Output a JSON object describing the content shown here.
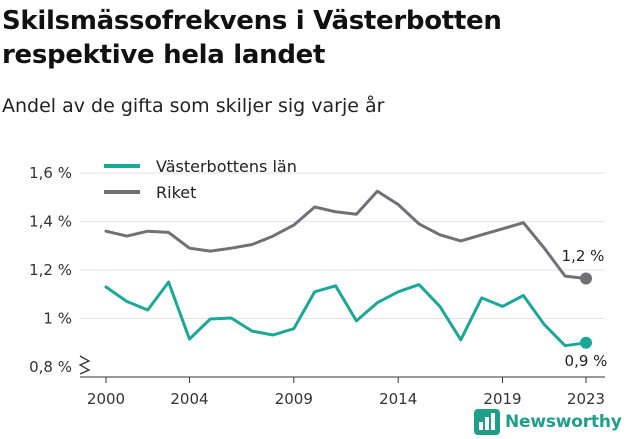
{
  "header": {
    "title": "Skilsmässofrekvens i Västerbotten respektive hela landet",
    "subtitle": "Andel av de gifta som skiljer sig varje år"
  },
  "brand": {
    "name": "Newsworthy",
    "icon": "bar-chart-logo-icon",
    "color": "#1f9e8a"
  },
  "chart_data": {
    "type": "line",
    "title": "Skilsmässofrekvens i Västerbotten respektive hela landet",
    "subtitle": "Andel av de gifta som skiljer sig varje år",
    "xlabel": "",
    "ylabel": "",
    "x": [
      2000,
      2001,
      2002,
      2003,
      2004,
      2005,
      2006,
      2007,
      2008,
      2009,
      2010,
      2011,
      2012,
      2013,
      2014,
      2015,
      2016,
      2017,
      2018,
      2019,
      2020,
      2021,
      2022,
      2023
    ],
    "xticks": [
      "2000",
      "2004",
      "2009",
      "2014",
      "2019",
      "2023"
    ],
    "yticks": [
      "0,8 %",
      "1 %",
      "1,2 %",
      "1,4 %",
      "1,6 %"
    ],
    "ylim": [
      0.8,
      1.6
    ],
    "y_axis_break": true,
    "grid": true,
    "legend_position": "top-left",
    "series": [
      {
        "name": "Västerbottens län",
        "color": "#1ba896",
        "values": [
          1.13,
          1.07,
          1.035,
          1.15,
          0.915,
          0.998,
          1.002,
          0.948,
          0.932,
          0.958,
          1.11,
          1.135,
          0.99,
          1.065,
          1.11,
          1.14,
          1.05,
          0.912,
          1.085,
          1.05,
          1.095,
          0.975,
          0.888,
          0.9
        ],
        "end_label": "0,9 %"
      },
      {
        "name": "Riket",
        "color": "#707075",
        "values": [
          1.36,
          1.34,
          1.36,
          1.355,
          1.29,
          1.278,
          1.29,
          1.305,
          1.34,
          1.385,
          1.46,
          1.44,
          1.43,
          1.525,
          1.47,
          1.39,
          1.345,
          1.32,
          1.345,
          1.37,
          1.395,
          1.29,
          1.175,
          1.165
        ],
        "end_label": "1,2 %"
      }
    ]
  }
}
